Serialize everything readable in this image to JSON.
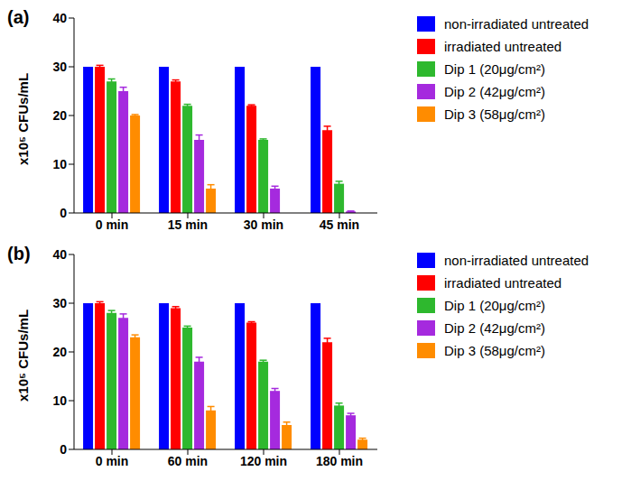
{
  "chart_data": [
    {
      "type": "bar",
      "title": "(a)",
      "y_label": "x10⁵ CFUs/mL",
      "categories": [
        "0 min",
        "15 min",
        "30 min",
        "45 min"
      ],
      "series": [
        {
          "name": "non-irradiated untreated",
          "color": "#0000ff",
          "values": [
            30,
            30,
            30,
            30
          ]
        },
        {
          "name": "irradiated untreated",
          "color": "#ff0000",
          "values": [
            30,
            27,
            22,
            17
          ],
          "errors": [
            0.3,
            0.3,
            0.2,
            0.8
          ]
        },
        {
          "name": "Dip 1 (20μg/cm²)",
          "color": "#2eb82e",
          "values": [
            27,
            22,
            15,
            6
          ],
          "errors": [
            0.5,
            0.3,
            0.2,
            0.5
          ]
        },
        {
          "name": "Dip 2 (42μg/cm²)",
          "color": "#a52ade",
          "values": [
            25,
            15,
            5,
            0.3
          ],
          "errors": [
            0.8,
            1,
            0.5,
            0.1
          ]
        },
        {
          "name": "Dip 3 (58μg/cm²)",
          "color": "#ff8c00",
          "values": [
            20,
            5,
            0,
            0
          ],
          "errors": [
            0.2,
            0.8,
            0,
            0
          ]
        }
      ],
      "ylim": [
        0,
        40
      ],
      "yticks": [
        0,
        10,
        20,
        30,
        40
      ],
      "grid": false,
      "legend": "right"
    },
    {
      "type": "bar",
      "title": "(b)",
      "y_label": "x10⁵ CFUs/mL",
      "categories": [
        "0 min",
        "60 min",
        "120 min",
        "180 min"
      ],
      "series": [
        {
          "name": "non-irradiated untreated",
          "color": "#0000ff",
          "values": [
            30,
            30,
            30,
            30
          ]
        },
        {
          "name": "irradiated untreated",
          "color": "#ff0000",
          "values": [
            30,
            29,
            26,
            22
          ],
          "errors": [
            0.3,
            0.3,
            0.2,
            0.8
          ]
        },
        {
          "name": "Dip 1 (20μg/cm²)",
          "color": "#2eb82e",
          "values": [
            28,
            25,
            18,
            9
          ],
          "errors": [
            0.5,
            0.3,
            0.3,
            0.5
          ]
        },
        {
          "name": "Dip 2 (42μg/cm²)",
          "color": "#a52ade",
          "values": [
            27,
            18,
            12,
            7
          ],
          "errors": [
            0.8,
            0.9,
            0.5,
            0.4
          ]
        },
        {
          "name": "Dip 3 (58μg/cm²)",
          "color": "#ff8c00",
          "values": [
            23,
            8,
            5,
            2
          ],
          "errors": [
            0.5,
            0.8,
            0.6,
            0.3
          ]
        }
      ],
      "ylim": [
        0,
        40
      ],
      "yticks": [
        0,
        10,
        20,
        30,
        40
      ],
      "grid": false,
      "legend": "right"
    }
  ]
}
